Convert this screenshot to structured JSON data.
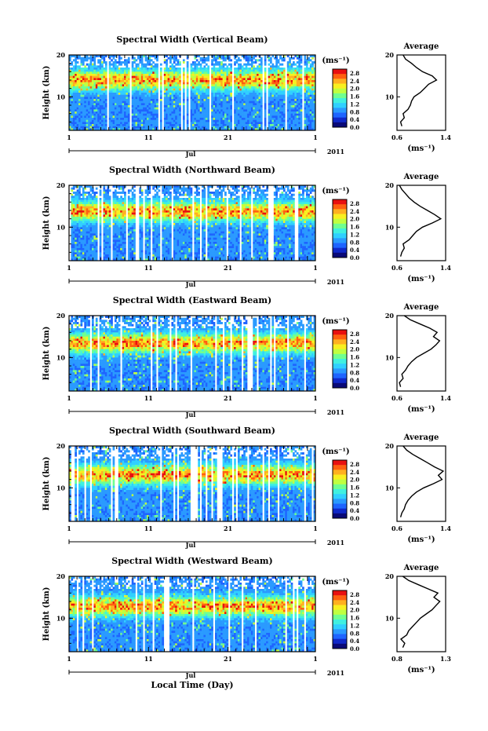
{
  "chart_data": [
    {
      "type": "heatmap",
      "title": "Spectral Width (Vertical Beam)",
      "ylabel": "Height (km)",
      "ylim": [
        2,
        20
      ],
      "y_ticks": [
        "20",
        "10"
      ],
      "x_ticks": [
        "1",
        "11",
        "21",
        "1"
      ],
      "month_label": "Jul",
      "year_label": "2011",
      "colorbar": {
        "unit": "(ms⁻¹)",
        "ticks": [
          "2.8",
          "2.4",
          "2.0",
          "1.6",
          "1.2",
          "0.8",
          "0.4",
          "0.0"
        ],
        "range": [
          0.0,
          3.0
        ]
      },
      "average_profile": {
        "title": "Average",
        "ylabel": "",
        "xlabel": "(ms⁻¹)",
        "x_ticks": [
          "0.6",
          "1.4"
        ],
        "xlim": [
          0.6,
          1.4
        ],
        "y_ticks": [
          "20",
          "10"
        ],
        "ylim": [
          2,
          20
        ],
        "heights": [
          3,
          4,
          5,
          6,
          7,
          8,
          9,
          10,
          11,
          12,
          13,
          14,
          15,
          16,
          17,
          18,
          19,
          20
        ],
        "values": [
          0.68,
          0.66,
          0.72,
          0.7,
          0.78,
          0.82,
          0.84,
          0.88,
          0.98,
          1.05,
          1.12,
          1.25,
          1.18,
          1.02,
          0.92,
          0.84,
          0.74,
          0.7
        ]
      }
    },
    {
      "type": "heatmap",
      "title": "Spectral Width (Northward Beam)",
      "ylabel": "Height (km)",
      "ylim": [
        2,
        20
      ],
      "y_ticks": [
        "20",
        "10"
      ],
      "x_ticks": [
        "1",
        "11",
        "21",
        "1"
      ],
      "month_label": "Jul",
      "year_label": "2011",
      "colorbar": {
        "unit": "(ms⁻¹)",
        "ticks": [
          "2.8",
          "2.4",
          "2.0",
          "1.6",
          "1.2",
          "0.8",
          "0.4",
          "0.0"
        ],
        "range": [
          0.0,
          3.0
        ]
      },
      "average_profile": {
        "title": "Average",
        "ylabel": "",
        "xlabel": "(ms⁻¹)",
        "x_ticks": [
          "0.6",
          "1.4"
        ],
        "xlim": [
          0.6,
          1.4
        ],
        "y_ticks": [
          "20",
          "10"
        ],
        "ylim": [
          2,
          20
        ],
        "heights": [
          3,
          4,
          5,
          6,
          7,
          8,
          9,
          10,
          11,
          12,
          13,
          14,
          15,
          16,
          17,
          18,
          19,
          20
        ],
        "values": [
          0.66,
          0.68,
          0.72,
          0.7,
          0.8,
          0.86,
          0.92,
          1.02,
          1.18,
          1.32,
          1.22,
          1.1,
          0.98,
          0.88,
          0.8,
          0.74,
          0.68,
          0.64
        ]
      }
    },
    {
      "type": "heatmap",
      "title": "Spectral Width (Eastward Beam)",
      "ylabel": "Height (km)",
      "ylim": [
        2,
        20
      ],
      "y_ticks": [
        "20",
        "10"
      ],
      "x_ticks": [
        "1",
        "11",
        "21",
        "1"
      ],
      "month_label": "Jul",
      "year_label": "2011",
      "colorbar": {
        "unit": "(ms⁻¹)",
        "ticks": [
          "2.8",
          "2.4",
          "2.0",
          "1.6",
          "1.2",
          "0.8",
          "0.4",
          "0.0"
        ],
        "range": [
          0.0,
          3.0
        ]
      },
      "average_profile": {
        "title": "Average",
        "ylabel": "",
        "xlabel": "(ms⁻¹)",
        "x_ticks": [
          "0.6",
          "1.4"
        ],
        "xlim": [
          0.6,
          1.4
        ],
        "y_ticks": [
          "20",
          "10"
        ],
        "ylim": [
          2,
          20
        ],
        "heights": [
          3,
          4,
          5,
          6,
          7,
          8,
          9,
          10,
          11,
          12,
          13,
          14,
          15,
          16,
          17,
          18,
          19,
          20
        ],
        "values": [
          0.66,
          0.64,
          0.7,
          0.68,
          0.74,
          0.78,
          0.84,
          0.92,
          1.04,
          1.16,
          1.24,
          1.3,
          1.2,
          1.26,
          1.14,
          0.98,
          0.82,
          0.72
        ]
      }
    },
    {
      "type": "heatmap",
      "title": "Spectral Width (Southward Beam)",
      "ylabel": "Height (km)",
      "ylim": [
        2,
        20
      ],
      "y_ticks": [
        "20",
        "10"
      ],
      "x_ticks": [
        "1",
        "11",
        "21",
        "1"
      ],
      "month_label": "Jul",
      "year_label": "2011",
      "colorbar": {
        "unit": "(ms⁻¹)",
        "ticks": [
          "2.8",
          "2.4",
          "2.0",
          "1.6",
          "1.2",
          "0.8",
          "0.4",
          "0.0"
        ],
        "range": [
          0.0,
          3.0
        ]
      },
      "average_profile": {
        "title": "Average",
        "ylabel": "",
        "xlabel": "(ms⁻¹)",
        "x_ticks": [
          "0.6",
          "1.4"
        ],
        "xlim": [
          0.6,
          1.4
        ],
        "y_ticks": [
          "20",
          "10"
        ],
        "ylim": [
          2,
          20
        ],
        "heights": [
          3,
          4,
          5,
          6,
          7,
          8,
          9,
          10,
          11,
          12,
          13,
          14,
          15,
          16,
          17,
          18,
          19,
          20
        ],
        "values": [
          0.66,
          0.68,
          0.72,
          0.74,
          0.78,
          0.84,
          0.92,
          1.04,
          1.2,
          1.34,
          1.28,
          1.36,
          1.22,
          1.1,
          0.98,
          0.86,
          0.76,
          0.7
        ]
      }
    },
    {
      "type": "heatmap",
      "title": "Spectral Width (Westward Beam)",
      "ylabel": "Height (km)",
      "ylim": [
        2,
        20
      ],
      "y_ticks": [
        "20",
        "10"
      ],
      "x_ticks": [
        "1",
        "11",
        "21",
        "1"
      ],
      "month_label": "Jul",
      "year_label": "2011",
      "xlabel": "Local Time (Day)",
      "colorbar": {
        "unit": "(ms⁻¹)",
        "ticks": [
          "2.8",
          "2.4",
          "2.0",
          "1.6",
          "1.2",
          "0.8",
          "0.4",
          "0.0"
        ],
        "range": [
          0.0,
          3.0
        ]
      },
      "average_profile": {
        "title": "Average",
        "ylabel": "",
        "xlabel": "(ms⁻¹)",
        "x_ticks": [
          "0.8",
          "1.3"
        ],
        "xlim": [
          0.8,
          1.3
        ],
        "y_ticks": [
          "20",
          "10"
        ],
        "ylim": [
          2,
          20
        ],
        "heights": [
          3,
          4,
          5,
          6,
          7,
          8,
          9,
          10,
          11,
          12,
          13,
          14,
          15,
          16,
          17,
          18,
          19,
          20
        ],
        "values": [
          0.86,
          0.88,
          0.84,
          0.9,
          0.92,
          0.96,
          1.0,
          1.04,
          1.1,
          1.16,
          1.2,
          1.24,
          1.18,
          1.22,
          1.12,
          1.02,
          0.92,
          0.86
        ]
      }
    }
  ]
}
